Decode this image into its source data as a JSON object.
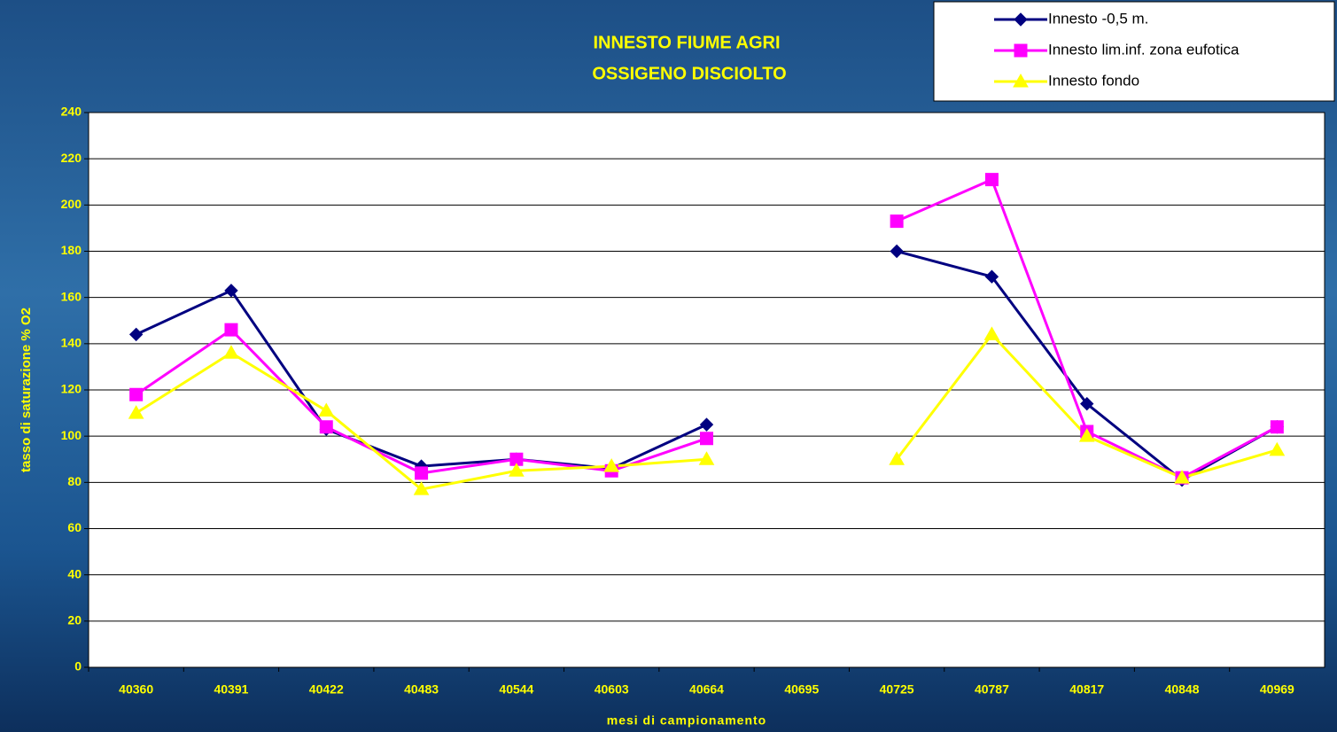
{
  "chart_data": {
    "type": "line",
    "title": [
      "INNESTO FIUME AGRI",
      "OSSIGENO DISCIOLTO"
    ],
    "xlabel": "mesi di campionamento",
    "ylabel": "tasso di saturazione % O2",
    "categories": [
      "40360",
      "40391",
      "40422",
      "40483",
      "40544",
      "40603",
      "40664",
      "40695",
      "40725",
      "40787",
      "40817",
      "40848",
      "40969"
    ],
    "series": [
      {
        "name": "Innesto -0,5 m.",
        "color": "#000080",
        "marker": "diamond",
        "values": [
          144,
          163,
          103,
          87,
          90,
          86,
          105,
          null,
          180,
          169,
          114,
          81,
          104
        ]
      },
      {
        "name": "Innesto lim.inf. zona eufotica",
        "color": "#ff00ff",
        "marker": "square",
        "values": [
          118,
          146,
          104,
          84,
          90,
          85,
          99,
          null,
          193,
          211,
          102,
          82,
          104
        ]
      },
      {
        "name": "Innesto fondo",
        "color": "#ffff00",
        "marker": "triangle",
        "values": [
          110,
          136,
          111,
          77,
          85,
          87,
          90,
          null,
          90,
          144,
          100,
          82,
          94
        ]
      }
    ],
    "ylim": [
      0,
      240
    ],
    "yticks": [
      0,
      20,
      40,
      60,
      80,
      100,
      120,
      140,
      160,
      180,
      200,
      220,
      240
    ],
    "grid": true,
    "legend": "top-right"
  }
}
